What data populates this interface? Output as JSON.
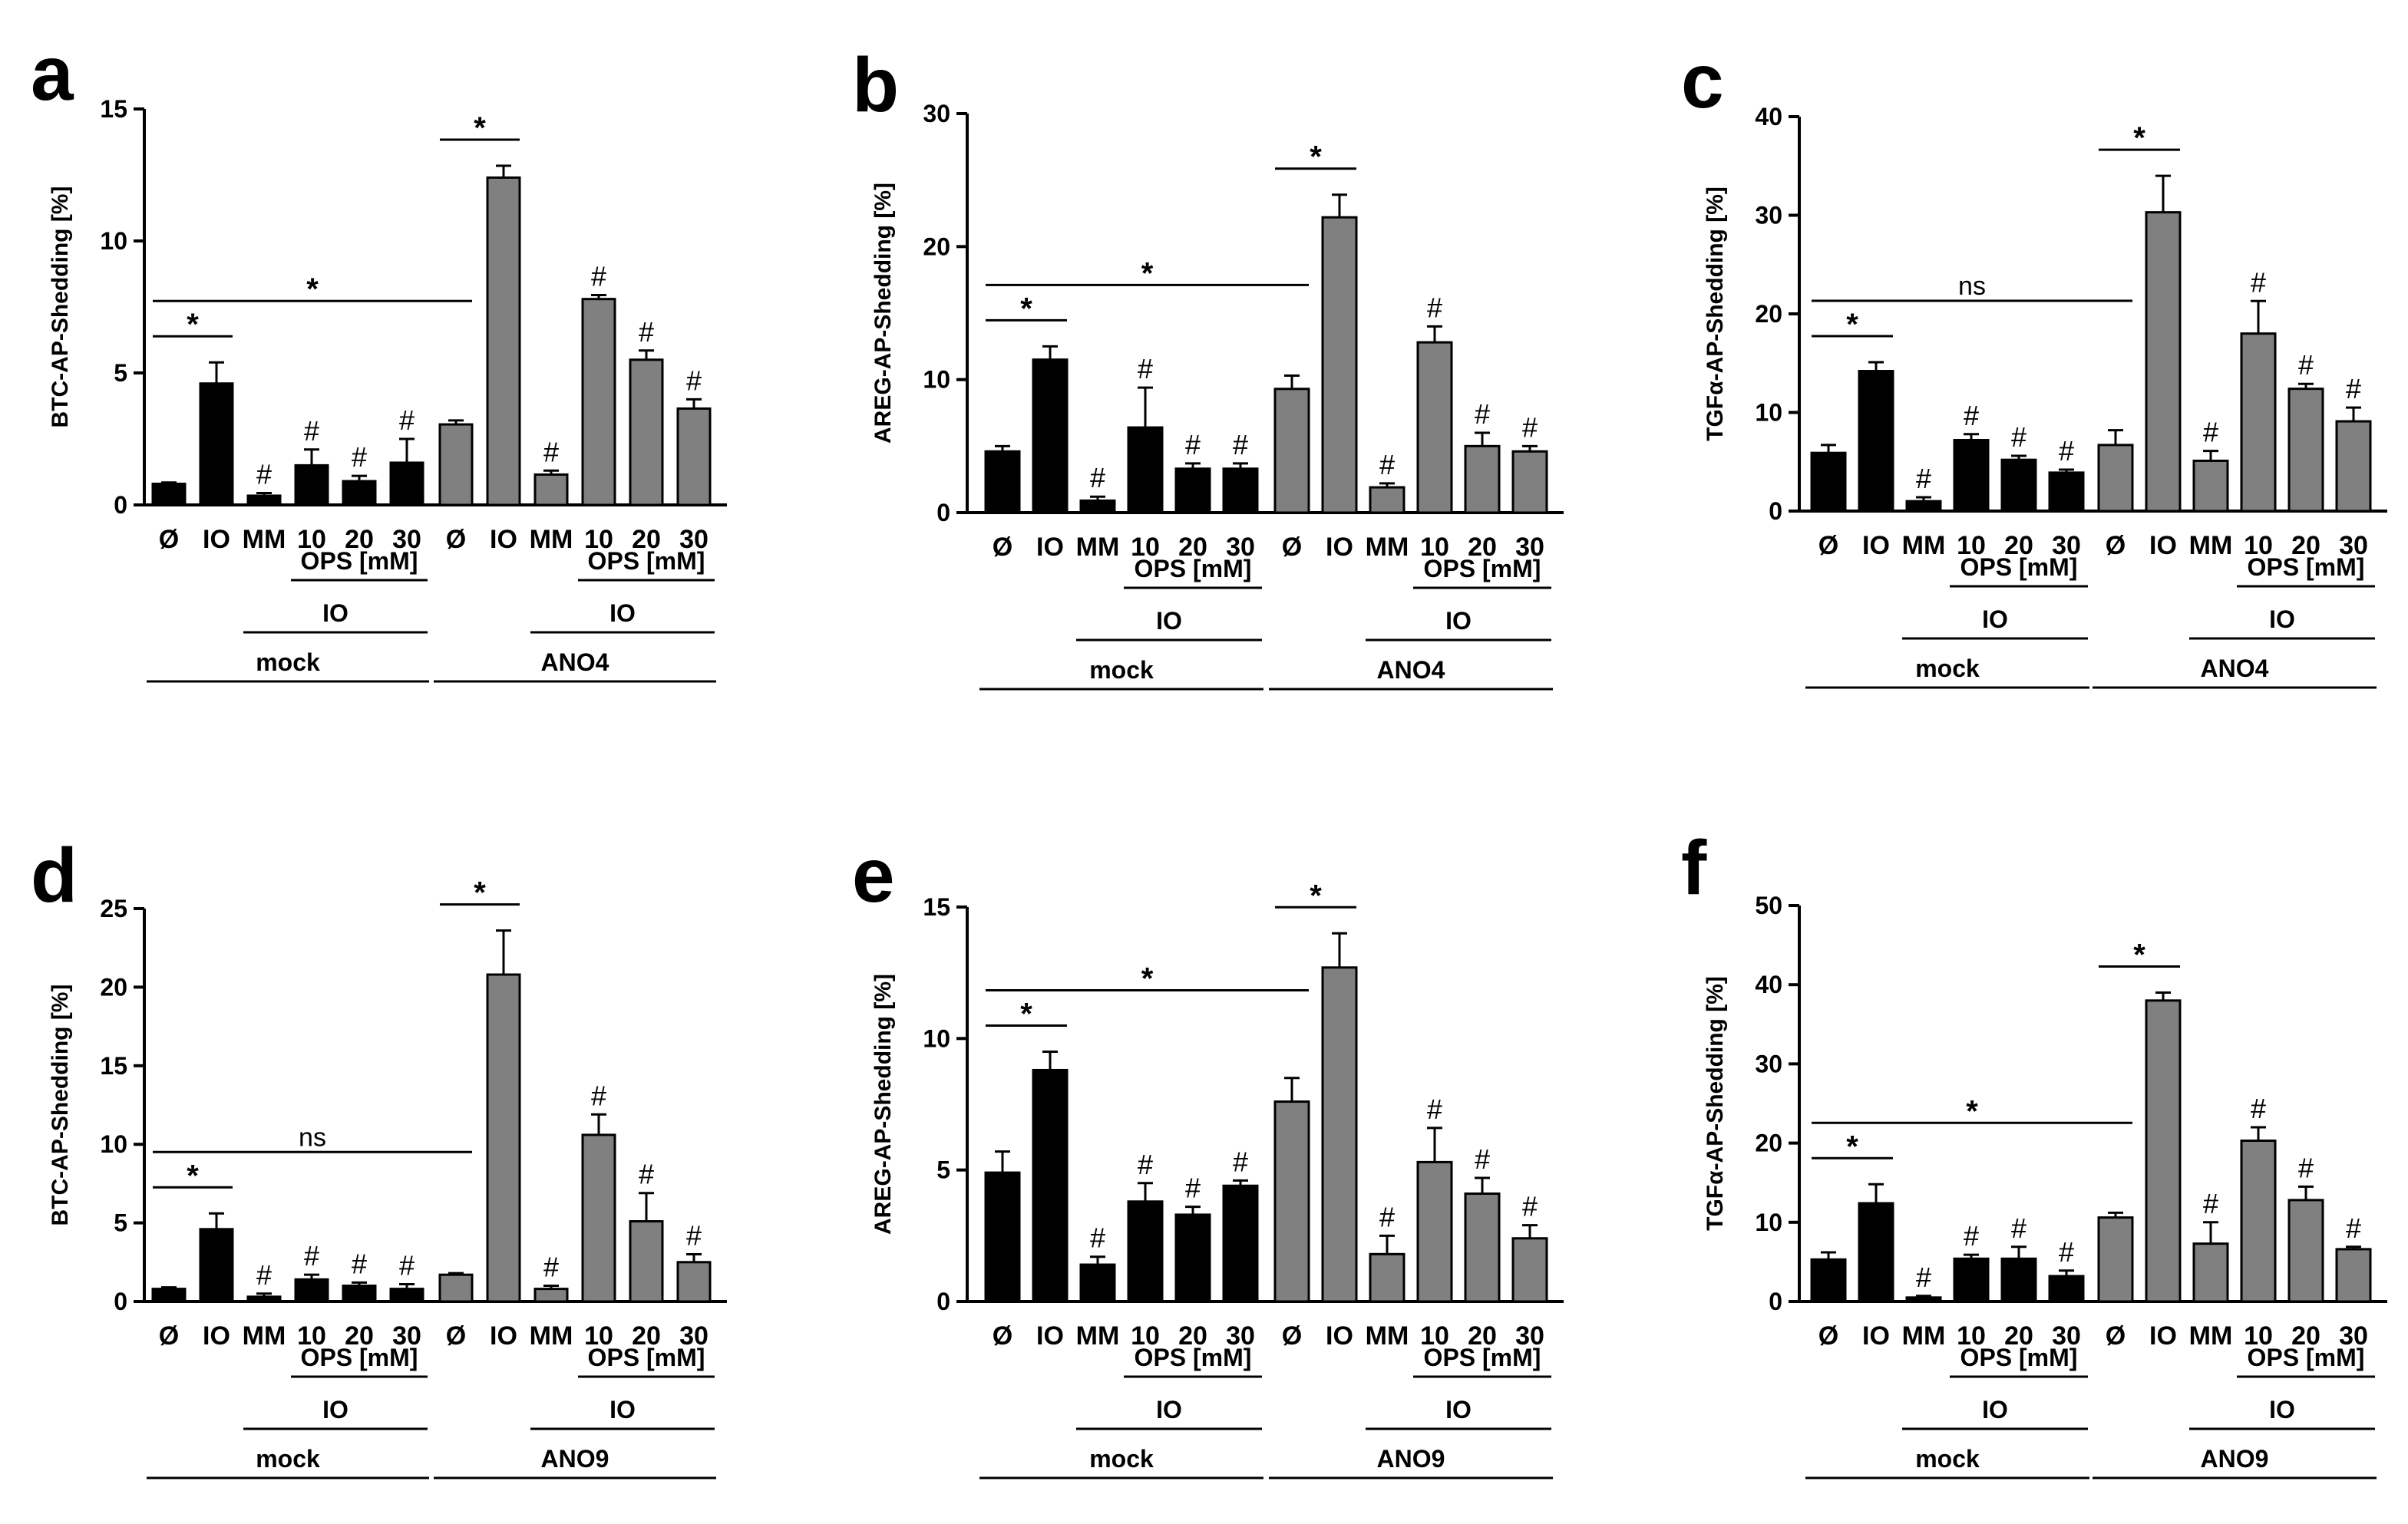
{
  "figure": {
    "labels": {
      "ns": "ns",
      "ops": "OPS [mM]",
      "io": "IO",
      "mock": "mock",
      "star": "*",
      "hash": "#"
    },
    "colors": {
      "mock": "#000000",
      "ano": "#808080",
      "axis": "#000000"
    }
  },
  "chart_data": [
    {
      "panel": "a",
      "type": "bar",
      "ylabel": "BTC-AP-Shedding [%]",
      "ylim": [
        0,
        15
      ],
      "yticks": [
        0,
        5,
        10,
        15
      ],
      "categories": [
        "Ø",
        "IO",
        "MM",
        "10",
        "20",
        "30",
        "Ø",
        "IO",
        "MM",
        "10",
        "20",
        "30"
      ],
      "groups": [
        "mock",
        "ANO4"
      ],
      "values": [
        0.8,
        4.6,
        0.35,
        1.5,
        0.9,
        1.6,
        3.05,
        12.4,
        1.15,
        7.8,
        5.5,
        3.65
      ],
      "errors": [
        0.05,
        0.8,
        0.1,
        0.6,
        0.2,
        0.9,
        0.15,
        0.45,
        0.15,
        0.15,
        0.35,
        0.35
      ],
      "hash": [
        false,
        false,
        true,
        true,
        true,
        true,
        false,
        false,
        true,
        true,
        true,
        true
      ],
      "sig_pairs": [
        "*",
        "*",
        "*"
      ]
    },
    {
      "panel": "b",
      "type": "bar",
      "ylabel": "AREG-AP-Shedding [%]",
      "ylim": [
        0,
        30
      ],
      "yticks": [
        0,
        10,
        20,
        30
      ],
      "categories": [
        "Ø",
        "IO",
        "MM",
        "10",
        "20",
        "30",
        "Ø",
        "IO",
        "MM",
        "10",
        "20",
        "30"
      ],
      "groups": [
        "mock",
        "ANO4"
      ],
      "values": [
        4.6,
        11.5,
        0.9,
        6.4,
        3.3,
        3.3,
        9.3,
        22.2,
        1.9,
        12.8,
        5.0,
        4.6
      ],
      "errors": [
        0.4,
        1.0,
        0.3,
        3.0,
        0.4,
        0.4,
        1.0,
        1.7,
        0.3,
        1.2,
        1.0,
        0.4
      ],
      "hash": [
        false,
        false,
        true,
        true,
        true,
        true,
        false,
        false,
        true,
        true,
        true,
        true
      ],
      "sig_pairs": [
        "*",
        "*",
        "*"
      ]
    },
    {
      "panel": "c",
      "type": "bar",
      "ylabel": "TGFα-AP-Shedding [%]",
      "ylim": [
        0,
        40
      ],
      "yticks": [
        0,
        10,
        20,
        30,
        40
      ],
      "categories": [
        "Ø",
        "IO",
        "MM",
        "10",
        "20",
        "30",
        "Ø",
        "IO",
        "MM",
        "10",
        "20",
        "30"
      ],
      "groups": [
        "mock",
        "ANO4"
      ],
      "values": [
        5.9,
        14.2,
        1.0,
        7.2,
        5.2,
        3.9,
        6.7,
        30.3,
        5.1,
        18.0,
        12.4,
        9.1
      ],
      "errors": [
        0.8,
        0.9,
        0.4,
        0.6,
        0.4,
        0.3,
        1.5,
        3.7,
        1.0,
        3.3,
        0.5,
        1.4
      ],
      "hash": [
        false,
        false,
        true,
        true,
        true,
        true,
        false,
        false,
        true,
        true,
        true,
        true
      ],
      "sig_pairs": [
        "ns",
        "*",
        "*"
      ]
    },
    {
      "panel": "d",
      "type": "bar",
      "ylabel": "BTC-AP-Shedding [%]",
      "ylim": [
        0,
        25
      ],
      "yticks": [
        0,
        5,
        10,
        15,
        20,
        25
      ],
      "categories": [
        "Ø",
        "IO",
        "MM",
        "10",
        "20",
        "30",
        "Ø",
        "IO",
        "MM",
        "10",
        "20",
        "30"
      ],
      "groups": [
        "mock",
        "ANO9"
      ],
      "values": [
        0.8,
        4.6,
        0.3,
        1.4,
        1.0,
        0.8,
        1.7,
        20.8,
        0.8,
        10.6,
        5.1,
        2.5
      ],
      "errors": [
        0.1,
        1.0,
        0.2,
        0.3,
        0.2,
        0.3,
        0.1,
        2.8,
        0.2,
        1.3,
        1.8,
        0.5
      ],
      "hash": [
        false,
        false,
        true,
        true,
        true,
        true,
        false,
        false,
        true,
        true,
        true,
        true
      ],
      "sig_pairs": [
        "ns",
        "*",
        "*"
      ]
    },
    {
      "panel": "e",
      "type": "bar",
      "ylabel": "AREG-AP-Shedding [%]",
      "ylim": [
        0,
        15
      ],
      "yticks": [
        0,
        5,
        10,
        15
      ],
      "categories": [
        "Ø",
        "IO",
        "MM",
        "10",
        "20",
        "30",
        "Ø",
        "IO",
        "MM",
        "10",
        "20",
        "30"
      ],
      "groups": [
        "mock",
        "ANO9"
      ],
      "values": [
        4.9,
        8.8,
        1.4,
        3.8,
        3.3,
        4.4,
        7.6,
        12.7,
        1.8,
        5.3,
        4.1,
        2.4
      ],
      "errors": [
        0.8,
        0.7,
        0.3,
        0.7,
        0.3,
        0.2,
        0.9,
        1.3,
        0.7,
        1.3,
        0.6,
        0.5
      ],
      "hash": [
        false,
        false,
        true,
        true,
        true,
        true,
        false,
        false,
        true,
        true,
        true,
        true
      ],
      "sig_pairs": [
        "*",
        "*",
        "*"
      ]
    },
    {
      "panel": "f",
      "type": "bar",
      "ylabel": "TGFα-AP-Shedding [%]",
      "ylim": [
        0,
        50
      ],
      "yticks": [
        0,
        10,
        20,
        30,
        40,
        50
      ],
      "categories": [
        "Ø",
        "IO",
        "MM",
        "10",
        "20",
        "30",
        "Ø",
        "IO",
        "MM",
        "10",
        "20",
        "30"
      ],
      "groups": [
        "mock",
        "ANO9"
      ],
      "values": [
        5.3,
        12.4,
        0.5,
        5.4,
        5.4,
        3.2,
        10.6,
        38.0,
        7.3,
        20.3,
        12.8,
        6.6
      ],
      "errors": [
        0.9,
        2.4,
        0.2,
        0.5,
        1.5,
        0.7,
        0.6,
        1.0,
        2.7,
        1.7,
        1.7,
        0.3
      ],
      "hash": [
        false,
        false,
        true,
        true,
        true,
        true,
        false,
        false,
        true,
        true,
        true,
        true
      ],
      "sig_pairs": [
        "*",
        "*",
        "*"
      ]
    }
  ]
}
